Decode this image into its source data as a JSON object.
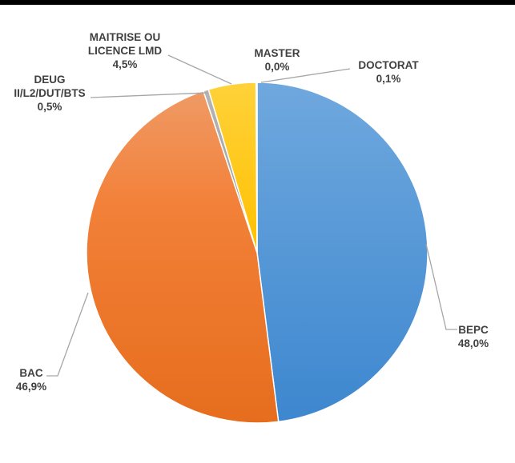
{
  "chart_data": {
    "type": "pie",
    "title": "",
    "categories": [
      "BEPC",
      "BAC",
      "DEUG II/L2/DUT/BTS",
      "MAITRISE OU LICENCE LMD",
      "MASTER",
      "DOCTORAT"
    ],
    "values": [
      48.0,
      46.9,
      0.5,
      4.5,
      0.0,
      0.1
    ],
    "value_labels": [
      "48,0%",
      "46,9%",
      "0,5%",
      "4,5%",
      "0,0%",
      "0,1%"
    ],
    "colors": [
      "#4a90d9",
      "#f0782a",
      "#a5a5a5",
      "#ffc000",
      "#5b9bd5",
      "#264478"
    ],
    "slices": [
      {
        "category_lines": [
          "BEPC"
        ],
        "value_label": "48,0%"
      },
      {
        "category_lines": [
          "BAC"
        ],
        "value_label": "46,9%"
      },
      {
        "category_lines": [
          "DEUG",
          "II/L2/DUT/BTS"
        ],
        "value_label": "0,5%"
      },
      {
        "category_lines": [
          "MAITRISE OU",
          "LICENCE LMD"
        ],
        "value_label": "4,5%"
      },
      {
        "category_lines": [
          "MASTER"
        ],
        "value_label": "0,0%"
      },
      {
        "category_lines": [
          "DOCTORAT"
        ],
        "value_label": "0,1%"
      }
    ],
    "legend": "none",
    "data_labels": "outside with leader lines"
  }
}
